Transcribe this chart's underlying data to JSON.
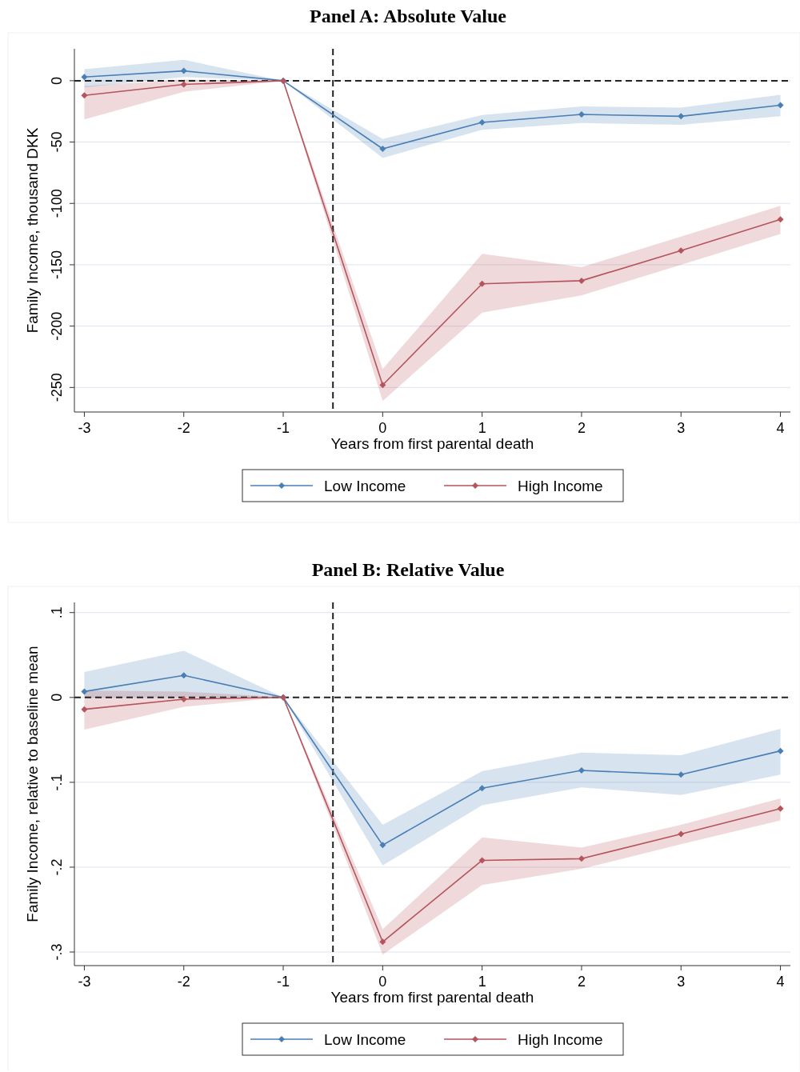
{
  "chart_data": [
    {
      "type": "line",
      "title": "Panel A: Absolute Value",
      "xlabel": "Years from first parental death",
      "ylabel": "Family Income, thousand DKK",
      "x": [
        -3,
        -2,
        -1,
        0,
        1,
        2,
        3,
        4
      ],
      "xlim": [
        -3.1,
        4.1
      ],
      "xticks": [
        -3,
        -2,
        -1,
        0,
        1,
        2,
        3,
        4
      ],
      "ylim": [
        -270,
        26
      ],
      "yticks": [
        0,
        -50,
        -100,
        -150,
        -200,
        -250
      ],
      "series": [
        {
          "name": "Low Income",
          "color": "#4a7fb5",
          "values": [
            3,
            8,
            0,
            -55.5,
            -34,
            -27.5,
            -29,
            -20
          ],
          "lower": [
            -5.5,
            3,
            0,
            -63,
            -40,
            -34.5,
            -36,
            -29
          ],
          "upper": [
            9.4,
            17,
            0,
            -47.5,
            -28,
            -21,
            -22,
            -11.5
          ]
        },
        {
          "name": "High Income",
          "color": "#b5545c",
          "values": [
            -12,
            -3,
            0,
            -248,
            -165.5,
            -163,
            -138.5,
            -113
          ],
          "lower": [
            -31.5,
            -9,
            0,
            -261,
            -189,
            -175,
            -150,
            -125
          ],
          "upper": [
            -4.5,
            1,
            0,
            -235,
            -141,
            -152,
            -127,
            -102
          ]
        }
      ],
      "ref_lines": [
        {
          "axis": "x",
          "value": -0.5,
          "line_style": "dashed",
          "color": "#222222"
        },
        {
          "axis": "y",
          "value": 0,
          "line_style": "dashed",
          "color": "#222222"
        }
      ],
      "grid": "y",
      "legend": "bottom",
      "marker": "diamond"
    },
    {
      "type": "line",
      "title": "Panel B: Relative Value",
      "xlabel": "Years from first parental death",
      "ylabel": "Family Income, relative to baseline mean",
      "x": [
        -3,
        -2,
        -1,
        0,
        1,
        2,
        3,
        4
      ],
      "xlim": [
        -3.1,
        4.1
      ],
      "xticks": [
        -3,
        -2,
        -1,
        0,
        1,
        2,
        3,
        4
      ],
      "ylim": [
        -0.316,
        0.112
      ],
      "yticks": [
        {
          "value": 0.1,
          "label": ".1"
        },
        0,
        {
          "value": -0.1,
          "label": "-.1"
        },
        {
          "value": -0.2,
          "label": "-.2"
        },
        {
          "value": -0.3,
          "label": "-.3"
        }
      ],
      "series": [
        {
          "name": "Low Income",
          "color": "#4a7fb5",
          "values": [
            0.007,
            0.026,
            0,
            -0.174,
            -0.107,
            -0.086,
            -0.091,
            -0.063
          ],
          "lower": [
            0,
            0.001,
            0,
            -0.198,
            -0.127,
            -0.106,
            -0.115,
            -0.091
          ],
          "upper": [
            0.03,
            0.055,
            0,
            -0.15,
            -0.087,
            -0.065,
            -0.068,
            -0.037
          ]
        },
        {
          "name": "High Income",
          "color": "#b5545c",
          "values": [
            -0.014,
            -0.002,
            0,
            -0.288,
            -0.192,
            -0.19,
            -0.161,
            -0.131
          ],
          "lower": [
            -0.038,
            -0.011,
            0,
            -0.303,
            -0.221,
            -0.202,
            -0.173,
            -0.145
          ],
          "upper": [
            0.008,
            0.007,
            0,
            -0.273,
            -0.165,
            -0.177,
            -0.15,
            -0.119
          ]
        }
      ],
      "ref_lines": [
        {
          "axis": "x",
          "value": -0.5,
          "line_style": "dashed",
          "color": "#222222"
        },
        {
          "axis": "y",
          "value": 0,
          "line_style": "dashed",
          "color": "#222222"
        }
      ],
      "grid": "y",
      "legend": "bottom",
      "marker": "diamond"
    }
  ]
}
